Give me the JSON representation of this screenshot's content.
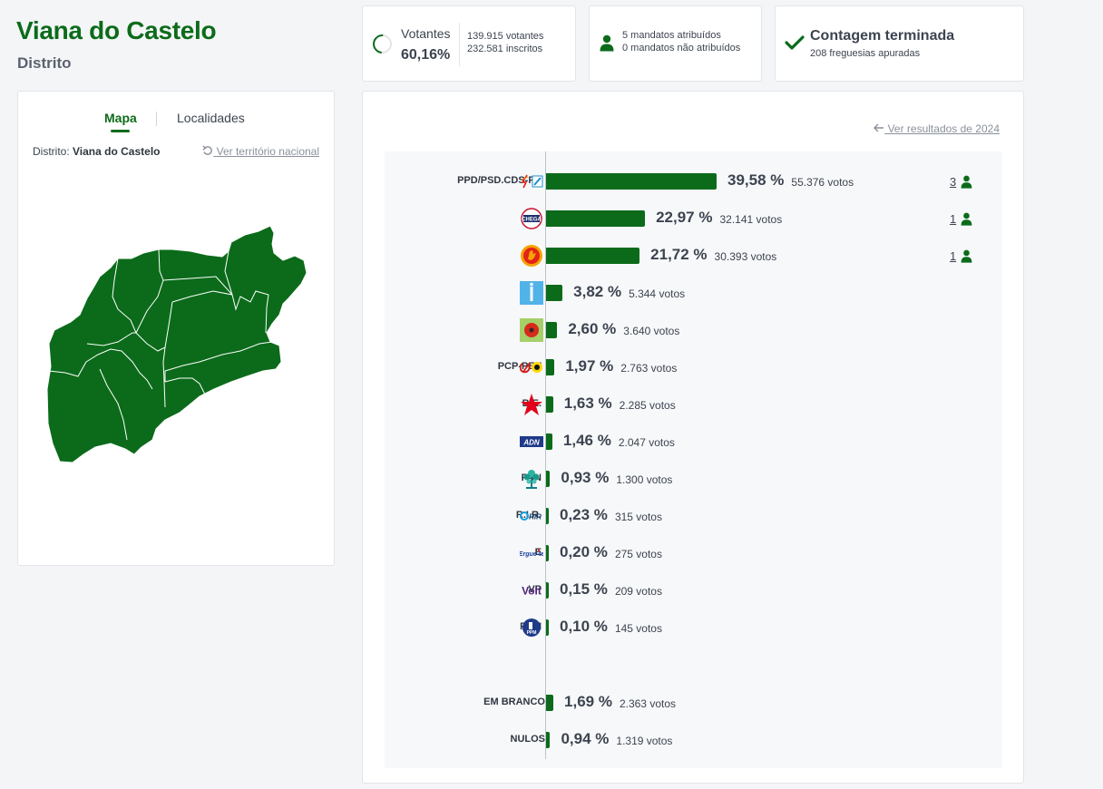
{
  "header": {
    "title": "Viana do Castelo",
    "subtitle": "Distrito"
  },
  "stats": {
    "votes_label": "Votantes",
    "votes_pct": "60,16%",
    "voters": "139.915 votantes",
    "registered": "232.581 inscritos",
    "mandates_assigned": "5 mandatos atribuídos",
    "mandates_unassigned": "0 mandatos não atribuídos",
    "count_title": "Contagem terminada",
    "count_sub": "208 freguesias apuradas"
  },
  "map_panel": {
    "tab_map": "Mapa",
    "tab_localities": "Localidades",
    "district_label": "Distrito:",
    "district_name": "Viana do Castelo",
    "national_link": "Ver território nacional",
    "map_color": "#0b6b1a"
  },
  "results": {
    "previous_link": "Ver resultados de 2024",
    "parties": [
      {
        "name": "PPD/PSD.CDS-PP",
        "pct_value": 39.58,
        "pct": "39,58 %",
        "votes": "55.376 votos",
        "seats": "3",
        "logo": "psd-cds-logo"
      },
      {
        "name": "CH",
        "pct_value": 22.97,
        "pct": "22,97 %",
        "votes": "32.141 votos",
        "seats": "1",
        "logo": "chega-logo"
      },
      {
        "name": "PS",
        "pct_value": 21.72,
        "pct": "21,72 %",
        "votes": "30.393 votos",
        "seats": "1",
        "logo": "ps-logo"
      },
      {
        "name": "IL",
        "pct_value": 3.82,
        "pct": "3,82 %",
        "votes": "5.344 votos",
        "seats": "",
        "logo": "il-logo"
      },
      {
        "name": "L",
        "pct_value": 2.6,
        "pct": "2,60 %",
        "votes": "3.640 votos",
        "seats": "",
        "logo": "livre-logo"
      },
      {
        "name": "PCP-PEV",
        "pct_value": 1.97,
        "pct": "1,97 %",
        "votes": "2.763 votos",
        "seats": "",
        "logo": "pcp-pev-logo"
      },
      {
        "name": "B.E.",
        "pct_value": 1.63,
        "pct": "1,63 %",
        "votes": "2.285 votos",
        "seats": "",
        "logo": "be-logo"
      },
      {
        "name": "ADN",
        "pct_value": 1.46,
        "pct": "1,46 %",
        "votes": "2.047 votos",
        "seats": "",
        "logo": "adn-logo"
      },
      {
        "name": "PAN",
        "pct_value": 0.93,
        "pct": "0,93 %",
        "votes": "1.300 votos",
        "seats": "",
        "logo": "pan-logo"
      },
      {
        "name": "R.I.R.",
        "pct_value": 0.23,
        "pct": "0,23 %",
        "votes": "315 votos",
        "seats": "",
        "logo": "rir-logo"
      },
      {
        "name": "E",
        "pct_value": 0.2,
        "pct": "0,20 %",
        "votes": "275 votos",
        "seats": "",
        "logo": "ergue-te-logo"
      },
      {
        "name": "VP",
        "pct_value": 0.15,
        "pct": "0,15 %",
        "votes": "209 votos",
        "seats": "",
        "logo": "volt-logo"
      },
      {
        "name": "PPM",
        "pct_value": 0.1,
        "pct": "0,10 %",
        "votes": "145 votos",
        "seats": "",
        "logo": "ppm-logo"
      }
    ],
    "others": [
      {
        "name": "EM BRANCO",
        "pct_value": 1.69,
        "pct": "1,69 %",
        "votes": "2.363 votos"
      },
      {
        "name": "NULOS",
        "pct_value": 0.94,
        "pct": "0,94 %",
        "votes": "1.319 votos"
      }
    ],
    "logo_text": {
      "chega": "CHEGA",
      "adn": "ADN",
      "rir": "RIR",
      "ergue": "Ergue-te",
      "volt": "Volt",
      "ppm": "PPM"
    },
    "bar_color": "#0b6b1a"
  }
}
